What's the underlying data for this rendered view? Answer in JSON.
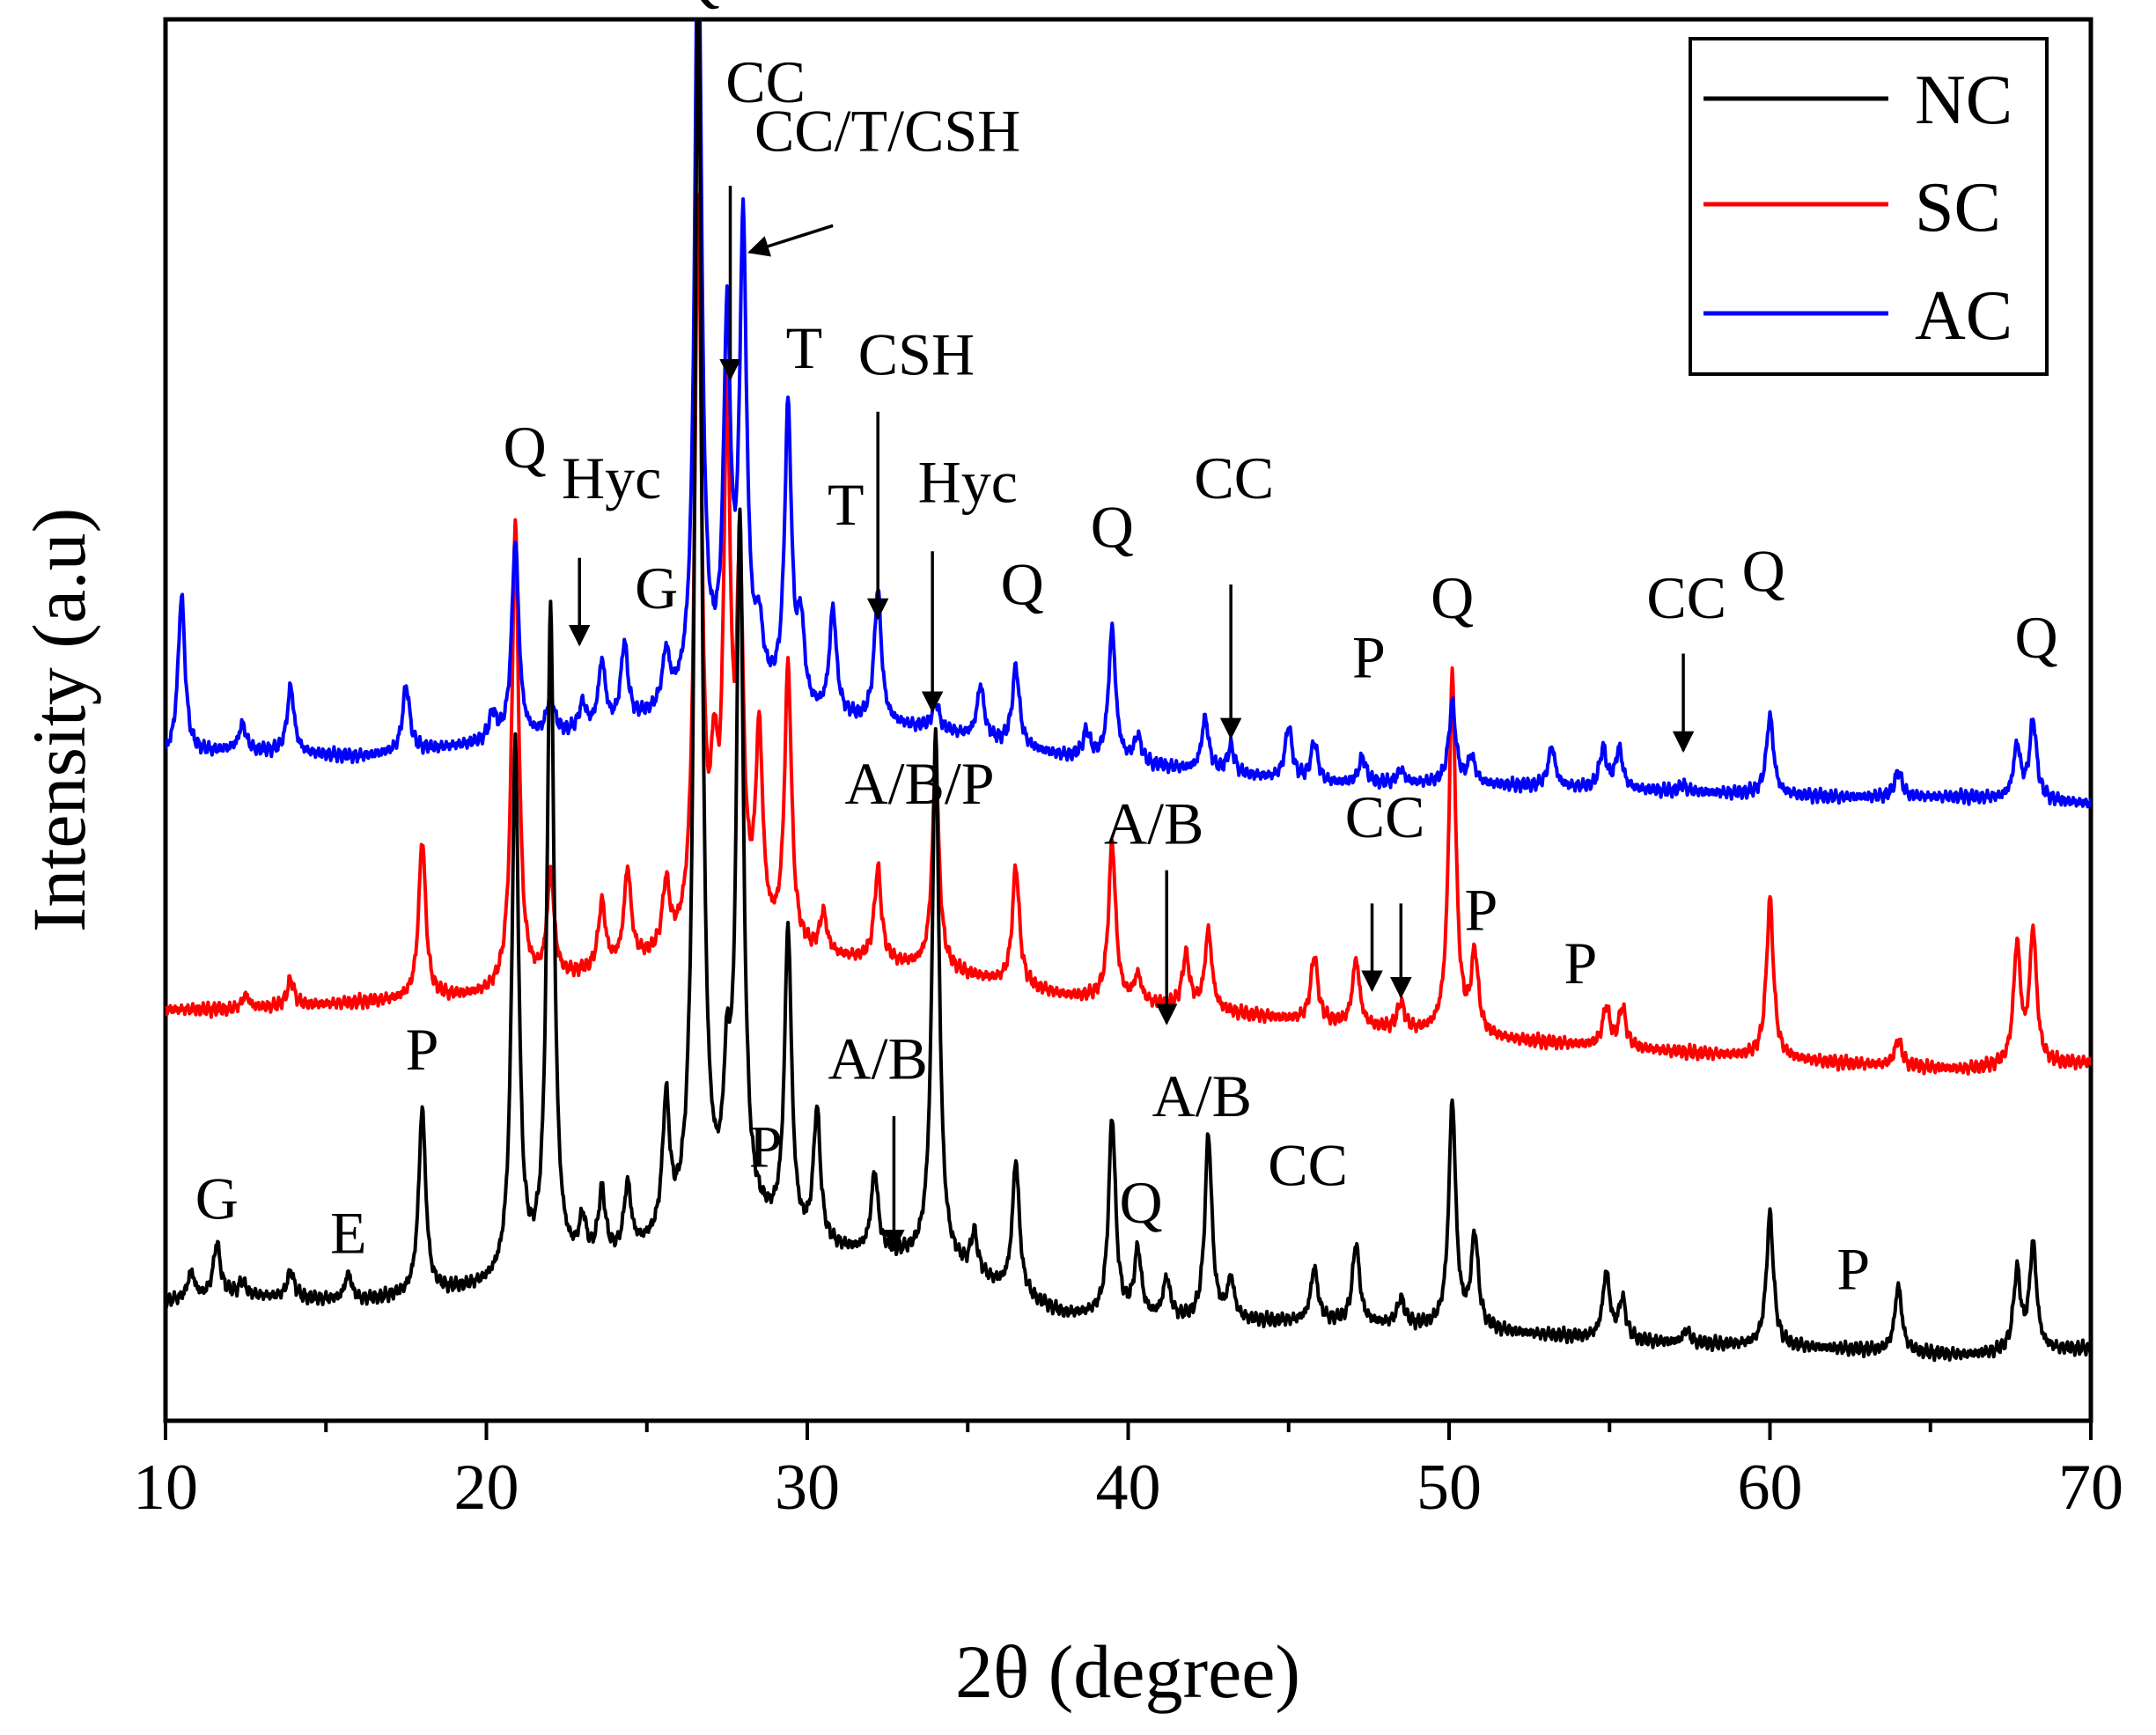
{
  "chart_data": {
    "type": "line",
    "title": "",
    "xlabel": "2θ (degree)",
    "ylabel": "Intensity (a.u)",
    "xlim": [
      10,
      70
    ],
    "ylim": [
      0,
      1
    ],
    "x_ticks": [
      10,
      20,
      30,
      40,
      50,
      60,
      70
    ],
    "x_tick_labels": [
      "10",
      "20",
      "30",
      "40",
      "50",
      "60",
      "70"
    ],
    "y_ticks_shown": false,
    "legend": {
      "placement": "top-right",
      "entries": [
        "NC",
        "SC",
        "AC"
      ]
    },
    "series": [
      {
        "name": "NC",
        "color": "#000000",
        "baseline": [
          [
            10,
            0.06
          ],
          [
            12,
            0.065
          ],
          [
            16,
            0.06
          ],
          [
            20,
            0.07
          ],
          [
            24,
            0.09
          ],
          [
            28,
            0.12
          ],
          [
            30,
            0.1
          ],
          [
            34,
            0.09
          ],
          [
            38,
            0.05
          ],
          [
            42,
            0.045
          ],
          [
            46,
            0.045
          ],
          [
            50,
            0.04
          ],
          [
            56,
            0.03
          ],
          [
            62,
            0.025
          ],
          [
            66,
            0.02
          ],
          [
            70,
            0.025
          ]
        ],
        "peaks": [
          [
            10.8,
            0.02
          ],
          [
            11.6,
            0.04
          ],
          [
            12.4,
            0.01
          ],
          [
            13.9,
            0.02
          ],
          [
            15.7,
            0.02
          ],
          [
            18.0,
            0.14
          ],
          [
            20.9,
            0.4
          ],
          [
            22.0,
            0.5
          ],
          [
            23.0,
            0.03
          ],
          [
            23.6,
            0.05
          ],
          [
            24.4,
            0.05
          ],
          [
            25.6,
            0.1
          ],
          [
            26.6,
            0.95
          ],
          [
            27.5,
            0.09
          ],
          [
            27.9,
            0.52
          ],
          [
            29.4,
            0.23
          ],
          [
            30.3,
            0.1
          ],
          [
            32.1,
            0.06
          ],
          [
            34.0,
            0.4
          ],
          [
            35.2,
            0.03
          ],
          [
            36.5,
            0.1
          ],
          [
            39.5,
            0.15
          ],
          [
            40.3,
            0.05
          ],
          [
            41.2,
            0.03
          ],
          [
            42.5,
            0.14
          ],
          [
            43.2,
            0.03
          ],
          [
            45.8,
            0.04
          ],
          [
            47.1,
            0.06
          ],
          [
            48.5,
            0.02
          ],
          [
            50.1,
            0.17
          ],
          [
            50.8,
            0.07
          ],
          [
            54.9,
            0.05
          ],
          [
            55.4,
            0.03
          ],
          [
            57.4,
            0.01
          ],
          [
            60.0,
            0.1
          ],
          [
            64.0,
            0.05
          ],
          [
            67.7,
            0.06
          ],
          [
            68.2,
            0.08
          ]
        ]
      },
      {
        "name": "SC",
        "color": "#ff0000",
        "baseline": [
          [
            10,
            0.28
          ],
          [
            12,
            0.28
          ],
          [
            16,
            0.285
          ],
          [
            20,
            0.29
          ],
          [
            24,
            0.31
          ],
          [
            28,
            0.33
          ],
          [
            30,
            0.32
          ],
          [
            34,
            0.31
          ],
          [
            38,
            0.29
          ],
          [
            42,
            0.28
          ],
          [
            46,
            0.27
          ],
          [
            50,
            0.26
          ],
          [
            56,
            0.25
          ],
          [
            62,
            0.24
          ],
          [
            66,
            0.235
          ],
          [
            70,
            0.24
          ]
        ],
        "peaks": [
          [
            12.5,
            0.01
          ],
          [
            13.9,
            0.02
          ],
          [
            18.0,
            0.12
          ],
          [
            20.9,
            0.35
          ],
          [
            22.0,
            0.08
          ],
          [
            23.6,
            0.05
          ],
          [
            24.4,
            0.07
          ],
          [
            25.6,
            0.05
          ],
          [
            26.6,
            0.55
          ],
          [
            27.1,
            0.1
          ],
          [
            27.5,
            0.38
          ],
          [
            27.9,
            0.25
          ],
          [
            28.5,
            0.15
          ],
          [
            29.4,
            0.21
          ],
          [
            30.5,
            0.03
          ],
          [
            32.2,
            0.07
          ],
          [
            34.0,
            0.15
          ],
          [
            36.5,
            0.09
          ],
          [
            39.5,
            0.12
          ],
          [
            40.3,
            0.02
          ],
          [
            41.8,
            0.04
          ],
          [
            42.5,
            0.06
          ],
          [
            45.8,
            0.05
          ],
          [
            47.1,
            0.05
          ],
          [
            48.5,
            0.02
          ],
          [
            50.1,
            0.27
          ],
          [
            50.8,
            0.06
          ],
          [
            54.9,
            0.03
          ],
          [
            55.4,
            0.03
          ],
          [
            60.0,
            0.12
          ],
          [
            64.0,
            0.02
          ],
          [
            67.7,
            0.09
          ],
          [
            68.2,
            0.1
          ]
        ]
      },
      {
        "name": "AC",
        "color": "#0000ff",
        "baseline": [
          [
            10,
            0.47
          ],
          [
            12,
            0.475
          ],
          [
            16,
            0.47
          ],
          [
            20,
            0.48
          ],
          [
            24,
            0.49
          ],
          [
            28,
            0.52
          ],
          [
            30,
            0.5
          ],
          [
            34,
            0.49
          ],
          [
            38,
            0.47
          ],
          [
            42,
            0.46
          ],
          [
            46,
            0.45
          ],
          [
            50,
            0.45
          ],
          [
            56,
            0.445
          ],
          [
            62,
            0.44
          ],
          [
            66,
            0.44
          ],
          [
            70,
            0.435
          ]
        ],
        "peaks": [
          [
            10.5,
            0.12
          ],
          [
            12.4,
            0.02
          ],
          [
            13.9,
            0.05
          ],
          [
            17.5,
            0.05
          ],
          [
            20.2,
            0.02
          ],
          [
            20.9,
            0.15
          ],
          [
            22.0,
            0.03
          ],
          [
            23.0,
            0.02
          ],
          [
            23.6,
            0.05
          ],
          [
            24.3,
            0.06
          ],
          [
            25.6,
            0.04
          ],
          [
            26.6,
            0.6
          ],
          [
            27.5,
            0.27
          ],
          [
            28.0,
            0.34
          ],
          [
            28.5,
            0.04
          ],
          [
            29.4,
            0.22
          ],
          [
            29.8,
            0.06
          ],
          [
            30.8,
            0.08
          ],
          [
            32.2,
            0.1
          ],
          [
            34.0,
            0.02
          ],
          [
            35.4,
            0.04
          ],
          [
            36.5,
            0.06
          ],
          [
            38.7,
            0.02
          ],
          [
            39.5,
            0.1
          ],
          [
            40.3,
            0.02
          ],
          [
            42.4,
            0.04
          ],
          [
            43.2,
            0.02
          ],
          [
            45.0,
            0.04
          ],
          [
            45.8,
            0.03
          ],
          [
            47.3,
            0.02
          ],
          [
            48.5,
            0.01
          ],
          [
            50.1,
            0.06
          ],
          [
            50.7,
            0.02
          ],
          [
            53.2,
            0.03
          ],
          [
            54.8,
            0.03
          ],
          [
            55.3,
            0.03
          ],
          [
            57.3,
            0.005
          ],
          [
            60.0,
            0.06
          ],
          [
            64.0,
            0.02
          ],
          [
            67.7,
            0.04
          ],
          [
            68.2,
            0.06
          ]
        ]
      }
    ],
    "annotations": [
      {
        "label": "G",
        "x": 11.6,
        "y": 0.123
      },
      {
        "label": "E",
        "x": 15.7,
        "y": 0.097
      },
      {
        "label": "P",
        "x": 18.0,
        "y": 0.235
      },
      {
        "label": "Q",
        "x": 26.6,
        "y": 1.04
      },
      {
        "label": "CC",
        "x": 28.7,
        "y": 0.963
      },
      {
        "label": "CC/T/CSH",
        "x": 32.5,
        "y": 0.926
      },
      {
        "label": "T",
        "x": 29.9,
        "y": 0.763
      },
      {
        "label": "CSH",
        "x": 33.4,
        "y": 0.758
      },
      {
        "label": "Q",
        "x": 21.2,
        "y": 0.688
      },
      {
        "label": "Hyc",
        "x": 23.9,
        "y": 0.665
      },
      {
        "label": "T",
        "x": 31.2,
        "y": 0.645
      },
      {
        "label": "Hyc",
        "x": 35.0,
        "y": 0.662
      },
      {
        "label": "G",
        "x": 25.3,
        "y": 0.582
      },
      {
        "label": "Q",
        "x": 36.7,
        "y": 0.585
      },
      {
        "label": "Q",
        "x": 39.5,
        "y": 0.628
      },
      {
        "label": "CC",
        "x": 43.3,
        "y": 0.665
      },
      {
        "label": "P",
        "x": 47.5,
        "y": 0.53
      },
      {
        "label": "Q",
        "x": 50.1,
        "y": 0.575
      },
      {
        "label": "CC",
        "x": 57.4,
        "y": 0.575
      },
      {
        "label": "Q",
        "x": 59.8,
        "y": 0.595
      },
      {
        "label": "Q",
        "x": 68.3,
        "y": 0.545
      },
      {
        "label": "A/B/P",
        "x": 33.5,
        "y": 0.435
      },
      {
        "label": "A/B",
        "x": 40.8,
        "y": 0.405
      },
      {
        "label": "CC",
        "x": 48.0,
        "y": 0.41
      },
      {
        "label": "P",
        "x": 51.0,
        "y": 0.34
      },
      {
        "label": "P",
        "x": 54.1,
        "y": 0.3
      },
      {
        "label": "A/B",
        "x": 32.2,
        "y": 0.228
      },
      {
        "label": "P",
        "x": 28.7,
        "y": 0.162
      },
      {
        "label": "A/B",
        "x": 42.3,
        "y": 0.2
      },
      {
        "label": "Q",
        "x": 40.4,
        "y": 0.12
      },
      {
        "label": "CC",
        "x": 45.6,
        "y": 0.148
      },
      {
        "label": "P",
        "x": 62.6,
        "y": 0.07
      }
    ],
    "arrows": [
      {
        "from": [
          22.9,
          0.62
        ],
        "to": [
          22.9,
          0.555
        ]
      },
      {
        "from": [
          27.6,
          0.9
        ],
        "to": [
          27.6,
          0.755
        ]
      },
      {
        "from": [
          30.8,
          0.87
        ],
        "to": [
          28.2,
          0.85
        ]
      },
      {
        "from": [
          32.2,
          0.73
        ],
        "to": [
          32.2,
          0.575
        ]
      },
      {
        "from": [
          33.9,
          0.625
        ],
        "to": [
          33.9,
          0.505
        ]
      },
      {
        "from": [
          43.2,
          0.6
        ],
        "to": [
          43.2,
          0.485
        ]
      },
      {
        "from": [
          57.3,
          0.548
        ],
        "to": [
          57.3,
          0.475
        ]
      },
      {
        "from": [
          41.2,
          0.385
        ],
        "to": [
          41.2,
          0.27
        ]
      },
      {
        "from": [
          47.6,
          0.36
        ],
        "to": [
          47.6,
          0.295
        ]
      },
      {
        "from": [
          48.5,
          0.36
        ],
        "to": [
          48.5,
          0.29
        ]
      },
      {
        "from": [
          32.7,
          0.2
        ],
        "to": [
          32.7,
          0.1
        ]
      }
    ]
  }
}
